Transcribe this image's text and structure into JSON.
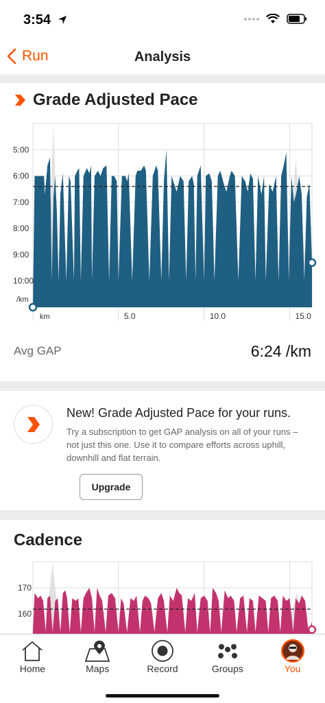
{
  "status": {
    "time": "3:54"
  },
  "nav": {
    "back_label": "Run",
    "title": "Analysis"
  },
  "gap_section": {
    "title": "Grade Adjusted Pace",
    "avg_label": "Avg GAP",
    "avg_value": "6:24 /km"
  },
  "promo": {
    "title": "New! Grade Adjusted Pace for your runs.",
    "text": "Try a subscription to get GAP analysis on all of your runs – not just this one. Use it to compare efforts across uphill, downhill and flat terrain.",
    "button_label": "Upgrade"
  },
  "cadence_section": {
    "title": "Cadence"
  },
  "tabs": [
    {
      "label": "Home",
      "icon": "home-icon"
    },
    {
      "label": "Maps",
      "icon": "map-pin-icon"
    },
    {
      "label": "Record",
      "icon": "record-icon"
    },
    {
      "label": "Groups",
      "icon": "groups-icon"
    },
    {
      "label": "You",
      "icon": "avatar-icon"
    }
  ],
  "colors": {
    "accent": "#fc5200",
    "gap_fill": "#1f5f82",
    "cadence_fill": "#c2336e"
  },
  "chart_data": [
    {
      "type": "area",
      "title": "Grade Adjusted Pace",
      "xlabel": "km",
      "ylabel": "/km",
      "x_ticks": [
        "5.0",
        "10.0",
        "15.0"
      ],
      "y_ticks": [
        "5:00",
        "6:00",
        "7:00",
        "8:00",
        "9:00",
        "10:00"
      ],
      "ylim_min_per_km": [
        4.0,
        11.0
      ],
      "xlim_km": [
        0,
        16.3
      ],
      "average": 6.4,
      "x": [
        0,
        0.1,
        0.2,
        0.65,
        0.7,
        0.85,
        1.0,
        1.1,
        1.2,
        1.3,
        1.4,
        1.5,
        1.6,
        1.75,
        1.95,
        2.1,
        2.2,
        2.4,
        2.45,
        2.6,
        2.7,
        2.8,
        2.95,
        3.15,
        3.3,
        3.4,
        3.45,
        3.6,
        3.8,
        3.95,
        4.1,
        4.3,
        4.45,
        4.6,
        4.75,
        4.9,
        5.0,
        5.2,
        5.4,
        5.5,
        5.6,
        5.8,
        6.0,
        6.1,
        6.3,
        6.5,
        6.6,
        6.8,
        7.0,
        7.2,
        7.3,
        7.5,
        7.65,
        7.8,
        7.95,
        8.1,
        8.25,
        8.4,
        8.6,
        8.8,
        8.95,
        9.1,
        9.3,
        9.4,
        9.5,
        9.6,
        9.8,
        10.0,
        10.1,
        10.3,
        10.45,
        10.6,
        10.8,
        10.95,
        11.15,
        11.3,
        11.5,
        11.6,
        11.8,
        12.0,
        12.2,
        12.4,
        12.55,
        12.7,
        12.85,
        13.0,
        13.15,
        13.35,
        13.5,
        13.6,
        13.8,
        14.0,
        14.2,
        14.35,
        14.5,
        14.65,
        14.8,
        14.95,
        15.1,
        15.25,
        15.4,
        15.55,
        15.7,
        15.85,
        16.0,
        16.15,
        16.3
      ],
      "y": [
        11.0,
        6.0,
        6.0,
        6.0,
        6.7,
        5.6,
        5.3,
        10.0,
        6.8,
        6.0,
        7.4,
        10.0,
        6.7,
        5.9,
        10.0,
        6.0,
        6.2,
        10.0,
        6.0,
        5.8,
        5.7,
        10.0,
        6.0,
        5.7,
        5.9,
        5.6,
        10.0,
        6.0,
        5.8,
        6.0,
        5.7,
        5.6,
        10.0,
        6.0,
        6.0,
        6.2,
        10.0,
        6.0,
        6.0,
        6.2,
        5.9,
        10.0,
        6.0,
        5.8,
        5.8,
        5.6,
        5.8,
        10.0,
        6.0,
        5.6,
        5.8,
        10.0,
        6.2,
        5.0,
        10.0,
        6.0,
        6.3,
        6.6,
        6.0,
        6.2,
        10.0,
        6.2,
        6.0,
        6.3,
        10.0,
        6.0,
        5.6,
        10.0,
        6.0,
        5.9,
        6.2,
        10.0,
        6.0,
        5.8,
        6.3,
        6.6,
        6.0,
        5.8,
        6.0,
        10.0,
        6.0,
        6.2,
        6.6,
        5.9,
        6.1,
        10.0,
        6.0,
        6.7,
        6.0,
        10.0,
        6.3,
        6.6,
        6.0,
        10.0,
        6.0,
        5.6,
        5.1,
        10.0,
        6.0,
        7.0,
        6.6,
        6.0,
        6.7,
        10.0,
        6.8,
        6.3,
        9.3
      ]
    },
    {
      "type": "area",
      "title": "Cadence",
      "y_ticks": [
        "160",
        "170"
      ],
      "ylim_spm": [
        153,
        180
      ],
      "average": 161.8,
      "x": [
        0,
        0.1,
        0.3,
        0.45,
        0.6,
        0.75,
        0.85,
        1.0,
        1.15,
        1.3,
        1.45,
        1.6,
        1.75,
        1.9,
        2.0,
        2.15,
        2.3,
        2.5,
        2.65,
        2.8,
        2.95,
        3.1,
        3.3,
        3.45,
        3.6,
        3.75,
        3.9,
        4.05,
        4.25,
        4.4,
        4.6,
        4.8,
        5.0,
        5.15,
        5.3,
        5.5,
        5.7,
        5.9,
        6.05,
        6.25,
        6.4,
        6.55,
        6.75,
        6.9,
        7.1,
        7.3,
        7.5,
        7.65,
        7.85,
        8.0,
        8.2,
        8.4,
        8.55,
        8.7,
        8.9,
        9.05,
        9.25,
        9.45,
        9.6,
        9.8,
        10.0,
        10.2,
        10.35,
        10.5,
        10.7,
        10.85,
        11.0,
        11.2,
        11.4,
        11.55,
        11.75,
        11.9,
        12.1,
        12.3,
        12.5,
        12.65,
        12.85,
        13.0,
        13.2,
        13.4,
        13.6,
        13.75,
        13.9,
        14.1,
        14.3,
        14.45,
        14.6,
        14.8,
        15.0,
        15.2,
        15.35,
        15.55,
        15.7,
        15.9,
        16.1,
        16.3
      ],
      "y": [
        153,
        168,
        166,
        167,
        165,
        153,
        166,
        167,
        153,
        165,
        166,
        153,
        168,
        169,
        166,
        153,
        166,
        165,
        166,
        153,
        166,
        168,
        170,
        166,
        153,
        170,
        167,
        165,
        153,
        167,
        168,
        166,
        153,
        166,
        164,
        153,
        166,
        165,
        167,
        153,
        165,
        167,
        166,
        164,
        153,
        166,
        168,
        165,
        153,
        167,
        165,
        170,
        168,
        167,
        153,
        166,
        165,
        168,
        153,
        166,
        167,
        165,
        153,
        170,
        168,
        165,
        153,
        169,
        166,
        167,
        165,
        153,
        166,
        167,
        153,
        166,
        165,
        153,
        167,
        166,
        165,
        153,
        166,
        167,
        165,
        153,
        167,
        165,
        166,
        153,
        166,
        164,
        167,
        165,
        153,
        157
      ]
    }
  ]
}
